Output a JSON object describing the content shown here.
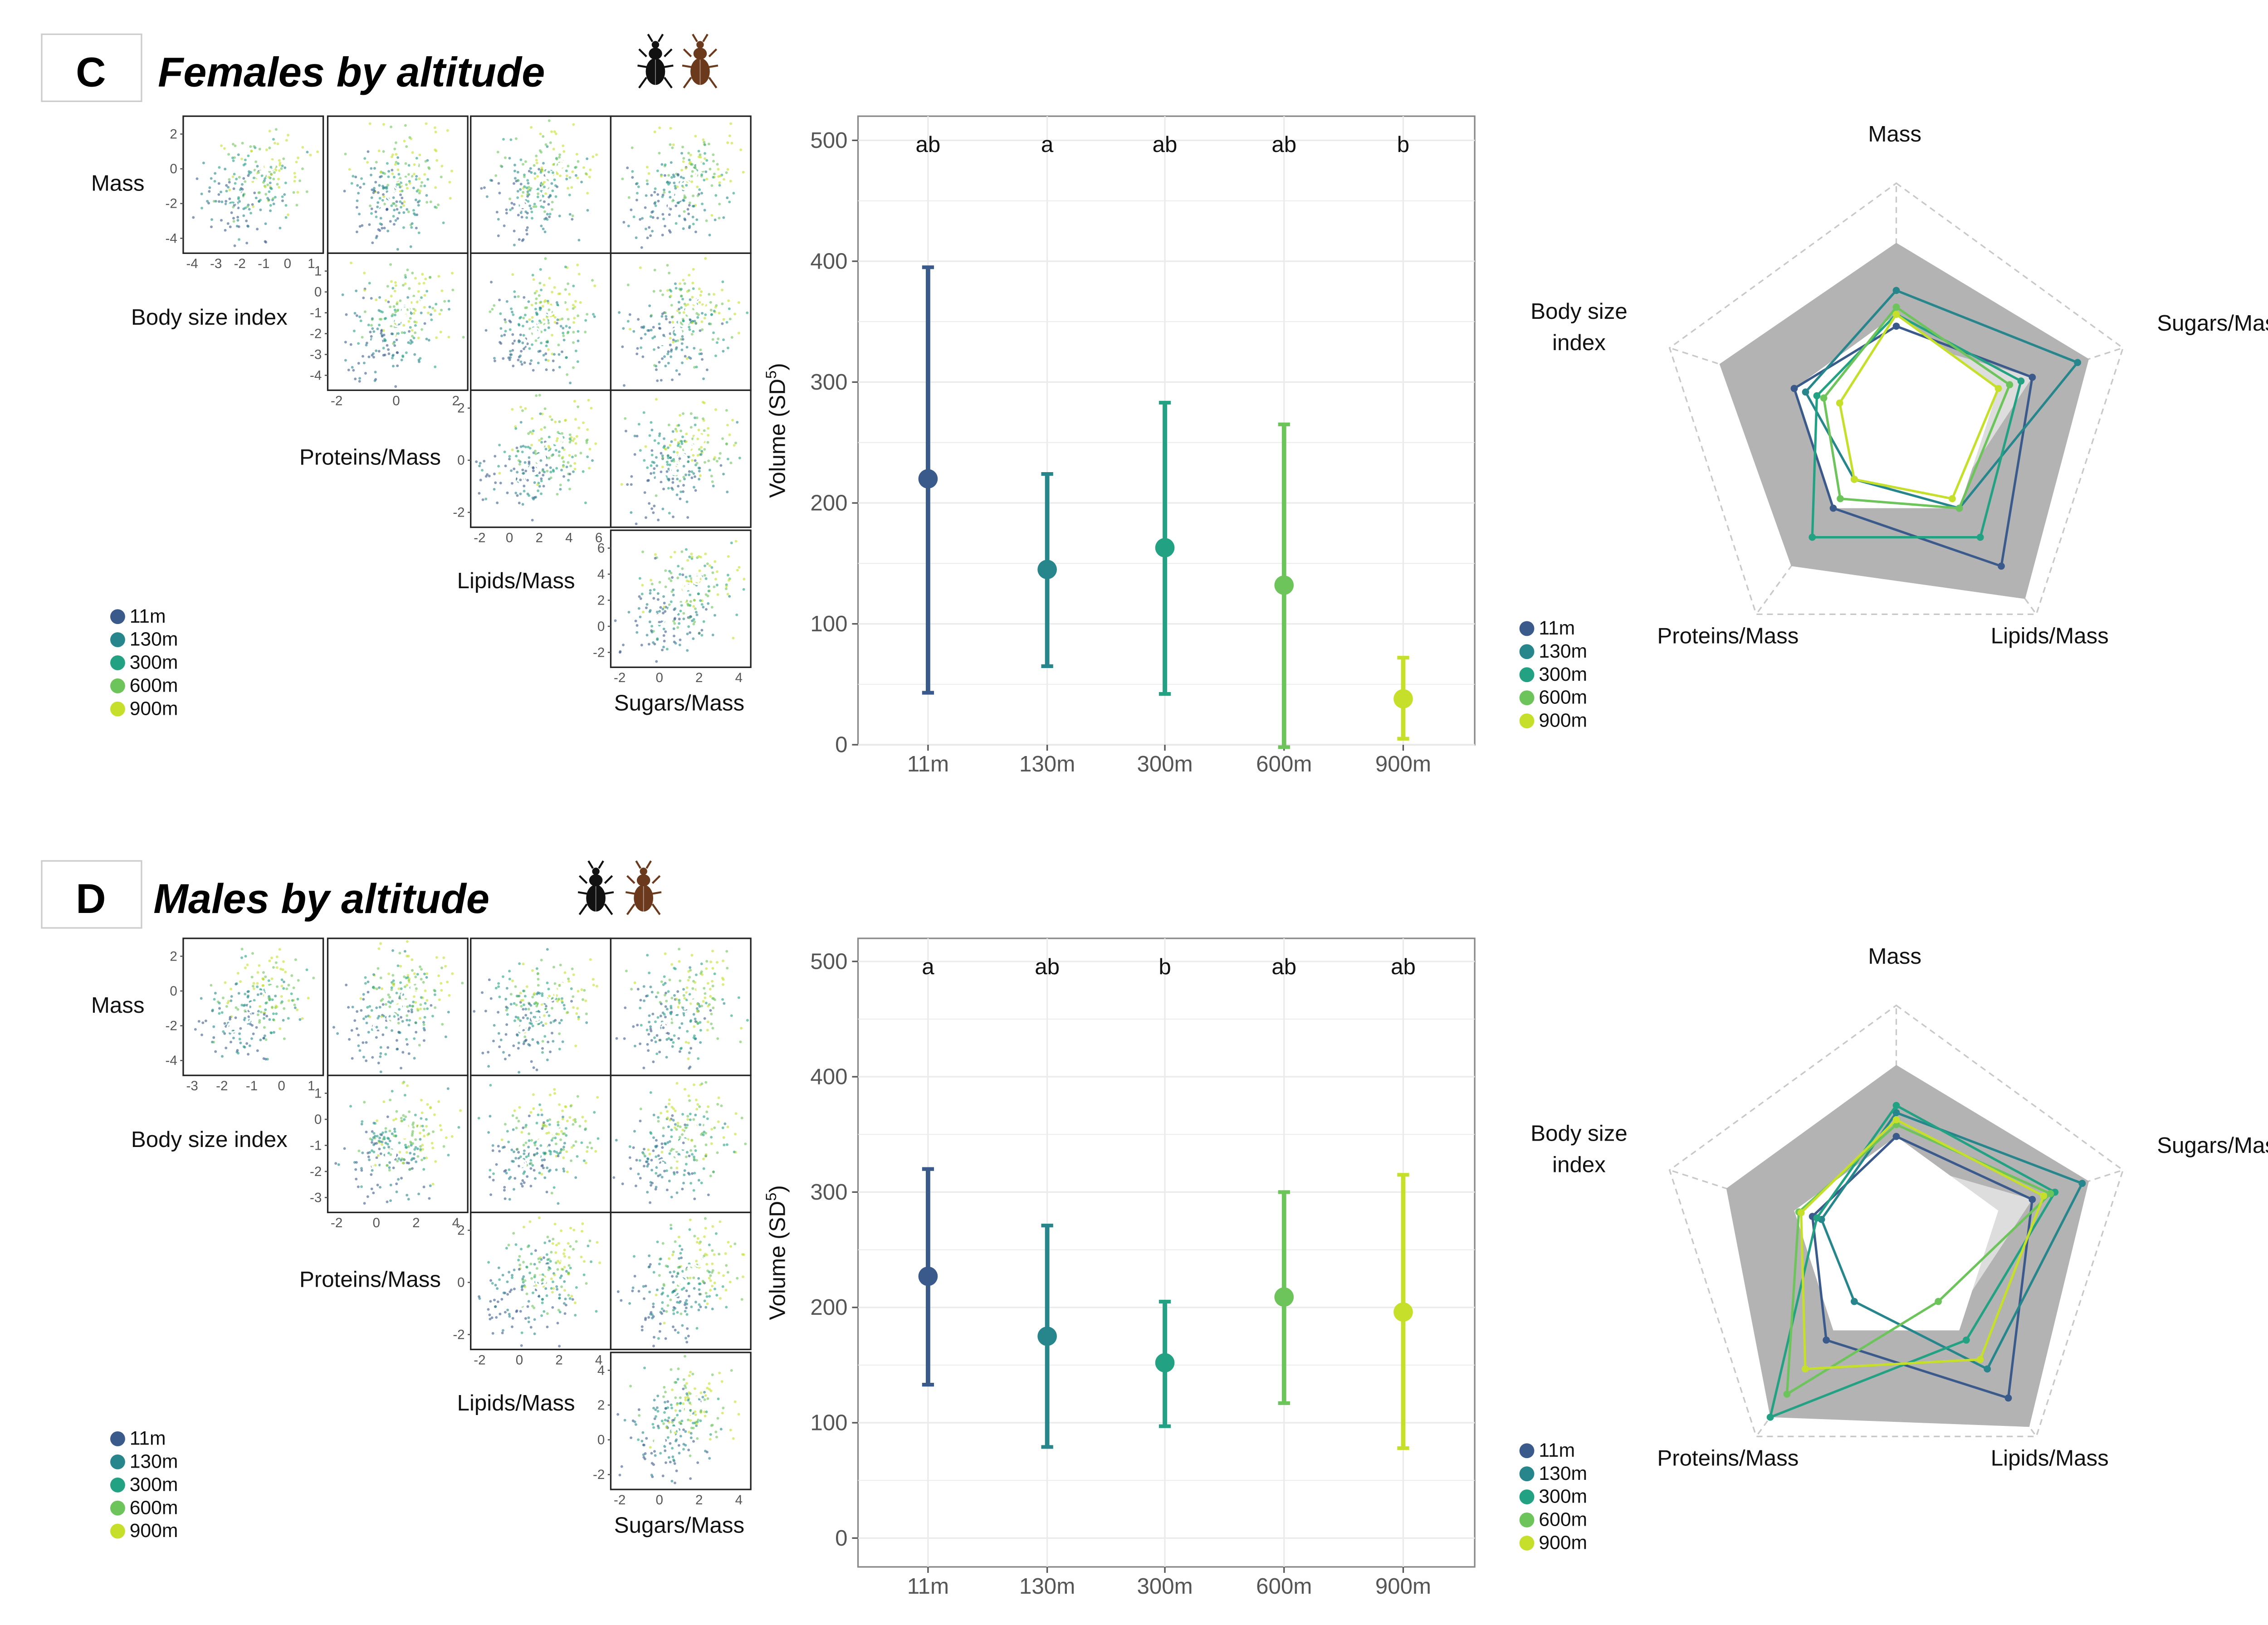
{
  "colors": {
    "11m": "#3b5a8c",
    "130m": "#26868c",
    "300m": "#23a183",
    "600m": "#6cc45a",
    "900m": "#c5df2a",
    "radar_outer": "#b3b3b3",
    "radar_inner": "#dddddd",
    "grid": "#ebebeb",
    "dashed": "#c8c8c8"
  },
  "legend": [
    "11m",
    "130m",
    "300m",
    "600m",
    "900m"
  ],
  "chart_data": [
    {
      "panel": "C",
      "title": "Females by altitude",
      "icons": [
        "beetle-black-icon",
        "beetle-brown-icon"
      ],
      "pairs": {
        "type": "scatter-matrix",
        "variables": [
          "Mass",
          "Body size index",
          "Proteins/Mass",
          "Lipids/Mass",
          "Sugars/Mass"
        ],
        "row_labels": [
          "Mass",
          "Body size index",
          "Proteins/Mass",
          "Lipids/Mass"
        ],
        "bottom_label": "Sugars/Mass",
        "diag_ticks": {
          "Mass_y": [
            "2",
            "0",
            "-2",
            "-4"
          ],
          "Mass_x": [
            "-4",
            "-3",
            "-2",
            "-1",
            "0",
            "1"
          ],
          "Body size index_y": [
            "1",
            "0",
            "-1",
            "-2",
            "-3",
            "-4"
          ],
          "Body size index_x": [
            "-2",
            "0",
            "2"
          ],
          "Proteins/Mass_y": [
            "2",
            "0",
            "-2"
          ],
          "Proteins/Mass_x": [
            "-2",
            "0",
            "2",
            "4",
            "6"
          ],
          "Lipids/Mass_y": [
            "6",
            "4",
            "2",
            "0",
            "-2"
          ],
          "Lipids/Mass_x": [
            "-2",
            "0",
            "2",
            "4"
          ]
        }
      },
      "volume": {
        "type": "errorbar",
        "categories": [
          "11m",
          "130m",
          "300m",
          "600m",
          "900m"
        ],
        "values": [
          220,
          145,
          163,
          132,
          38
        ],
        "lower": [
          43,
          65,
          42,
          -2,
          5
        ],
        "upper": [
          395,
          224,
          283,
          265,
          72
        ],
        "letters": [
          "ab",
          "a",
          "ab",
          "ab",
          "b"
        ],
        "ylabel": "Volume",
        "ylabel_sup": "5",
        "ylabel_unit": "SD",
        "ylim": [
          0,
          520
        ],
        "yticks": [
          0,
          100,
          200,
          300,
          400,
          500
        ]
      },
      "radar": {
        "type": "radar",
        "axes": [
          "Mass",
          "Sugars/Mass",
          "Lipids/Mass",
          "Proteins/Mass",
          "Body size index"
        ],
        "outer": [
          0.75,
          0.85,
          0.92,
          0.75,
          0.78
        ],
        "inner": [
          0.25,
          0.5,
          0.3,
          0.15,
          0.22
        ],
        "series": [
          {
            "name": "11m",
            "values": [
              0.4,
              0.6,
              0.75,
              0.45,
              0.45
            ]
          },
          {
            "name": "130m",
            "values": [
              0.55,
              0.8,
              0.45,
              0.3,
              0.4
            ]
          },
          {
            "name": "300m",
            "values": [
              0.45,
              0.55,
              0.6,
              0.6,
              0.35
            ]
          },
          {
            "name": "600m",
            "values": [
              0.48,
              0.5,
              0.45,
              0.4,
              0.32
            ]
          },
          {
            "name": "900m",
            "values": [
              0.45,
              0.45,
              0.4,
              0.3,
              0.25
            ]
          }
        ]
      }
    },
    {
      "panel": "D",
      "title": "Males by altitude",
      "icons": [
        "beetle-black-icon",
        "beetle-brown-icon"
      ],
      "pairs": {
        "type": "scatter-matrix",
        "variables": [
          "Mass",
          "Body size index",
          "Proteins/Mass",
          "Lipids/Mass",
          "Sugars/Mass"
        ],
        "row_labels": [
          "Mass",
          "Body size index",
          "Proteins/Mass",
          "Lipids/Mass"
        ],
        "bottom_label": "Sugars/Mass",
        "diag_ticks": {
          "Mass_y": [
            "2",
            "0",
            "-2",
            "-4"
          ],
          "Mass_x": [
            "-3",
            "-2",
            "-1",
            "0",
            "1"
          ],
          "Body size index_y": [
            "1",
            "0",
            "-1",
            "-2",
            "-3"
          ],
          "Body size index_x": [
            "-2",
            "0",
            "2",
            "4"
          ],
          "Proteins/Mass_y": [
            "2",
            "0",
            "-2"
          ],
          "Proteins/Mass_x": [
            "-2",
            "0",
            "2",
            "4"
          ],
          "Lipids/Mass_y": [
            "4",
            "2",
            "0",
            "-2"
          ],
          "Lipids/Mass_x": [
            "-2",
            "0",
            "2",
            "4"
          ]
        }
      },
      "volume": {
        "type": "errorbar",
        "categories": [
          "11m",
          "130m",
          "300m",
          "600m",
          "900m"
        ],
        "values": [
          227,
          175,
          152,
          209,
          196
        ],
        "lower": [
          133,
          79,
          97,
          117,
          78
        ],
        "upper": [
          320,
          271,
          205,
          300,
          315
        ],
        "letters": [
          "a",
          "ab",
          "b",
          "ab",
          "ab"
        ],
        "ylabel": "Volume",
        "ylabel_sup": "5",
        "ylabel_unit": "SD",
        "ylim": [
          -25,
          520
        ],
        "yticks": [
          0,
          100,
          200,
          300,
          400,
          500
        ]
      },
      "radar": {
        "type": "radar",
        "axes": [
          "Mass",
          "Sugars/Mass",
          "Lipids/Mass",
          "Proteins/Mass",
          "Body size index"
        ],
        "outer": [
          0.75,
          0.85,
          0.95,
          0.9,
          0.75
        ],
        "inner": [
          0.25,
          0.5,
          0.3,
          0.15,
          0.22
        ],
        "series": [
          {
            "name": "11m",
            "values": [
              0.45,
              0.6,
              0.8,
              0.5,
              0.37
            ]
          },
          {
            "name": "130m",
            "values": [
              0.55,
              0.82,
              0.65,
              0.3,
              0.33
            ]
          },
          {
            "name": "300m",
            "values": [
              0.58,
              0.7,
              0.5,
              0.9,
              0.35
            ]
          },
          {
            "name": "600m",
            "values": [
              0.5,
              0.68,
              0.3,
              0.78,
              0.43
            ]
          },
          {
            "name": "900m",
            "values": [
              0.52,
              0.65,
              0.6,
              0.65,
              0.42
            ]
          }
        ]
      }
    }
  ]
}
